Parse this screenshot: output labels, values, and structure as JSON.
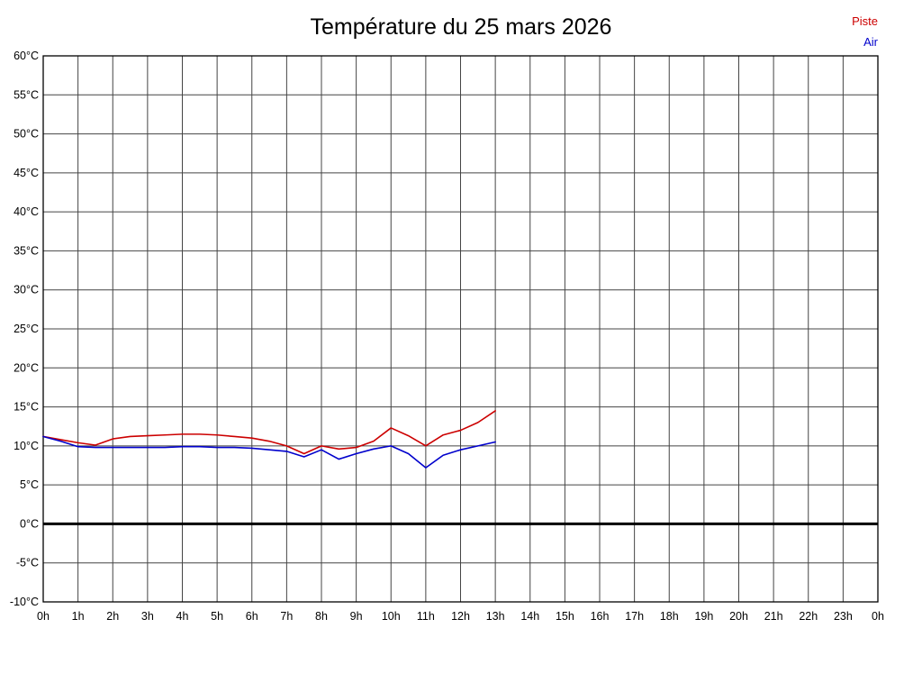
{
  "title": "Température du 25 mars 2026",
  "legend": {
    "piste": {
      "label": "Piste",
      "color": "#cc0000"
    },
    "air": {
      "label": "Air",
      "color": "#0000cc"
    }
  },
  "chart_data": {
    "type": "line",
    "title": "Température du 25 mars 2026",
    "xlabel": "",
    "ylabel": "",
    "xlim": [
      0,
      24
    ],
    "ylim": [
      -10,
      60
    ],
    "y_step": 5,
    "grid": true,
    "grid_color": "#444444",
    "zero_line_at": 0,
    "zero_line_color": "#000000",
    "legend_position": "top-right",
    "x_ticks": [
      "0h",
      "1h",
      "2h",
      "3h",
      "4h",
      "5h",
      "6h",
      "7h",
      "8h",
      "9h",
      "10h",
      "11h",
      "12h",
      "13h",
      "14h",
      "15h",
      "16h",
      "17h",
      "18h",
      "19h",
      "20h",
      "21h",
      "22h",
      "23h",
      "0h"
    ],
    "y_ticks": [
      "60°C",
      "55°C",
      "50°C",
      "45°C",
      "40°C",
      "35°C",
      "30°C",
      "25°C",
      "20°C",
      "15°C",
      "10°C",
      "5°C",
      "0°C",
      "-5°C",
      "-10°C"
    ],
    "series": [
      {
        "name": "Piste",
        "color": "#cc0000",
        "x": [
          0,
          0.5,
          1,
          1.5,
          2,
          2.5,
          3,
          3.5,
          4,
          4.5,
          5,
          5.5,
          6,
          6.5,
          7,
          7.5,
          8,
          8.5,
          9,
          9.5,
          10,
          10.5,
          11,
          11.5,
          12,
          12.5,
          13
        ],
        "y": [
          11.2,
          10.8,
          10.4,
          10.1,
          10.9,
          11.2,
          11.3,
          11.4,
          11.5,
          11.5,
          11.4,
          11.2,
          11.0,
          10.6,
          10.0,
          9.0,
          10.0,
          9.6,
          9.8,
          10.6,
          12.3,
          11.3,
          10.0,
          11.4,
          12.0,
          13.0,
          14.5
        ]
      },
      {
        "name": "Air",
        "color": "#0000cc",
        "x": [
          0,
          0.5,
          1,
          1.5,
          2,
          2.5,
          3,
          3.5,
          4,
          4.5,
          5,
          5.5,
          6,
          6.5,
          7,
          7.5,
          8,
          8.5,
          9,
          9.5,
          10,
          10.5,
          11,
          11.5,
          12,
          12.5,
          13
        ],
        "y": [
          11.2,
          10.6,
          9.9,
          9.8,
          9.8,
          9.8,
          9.8,
          9.8,
          9.9,
          9.9,
          9.8,
          9.8,
          9.7,
          9.5,
          9.3,
          8.6,
          9.5,
          8.3,
          9.0,
          9.6,
          10.0,
          9.0,
          7.2,
          8.8,
          9.5,
          10.0,
          10.5
        ]
      }
    ]
  }
}
